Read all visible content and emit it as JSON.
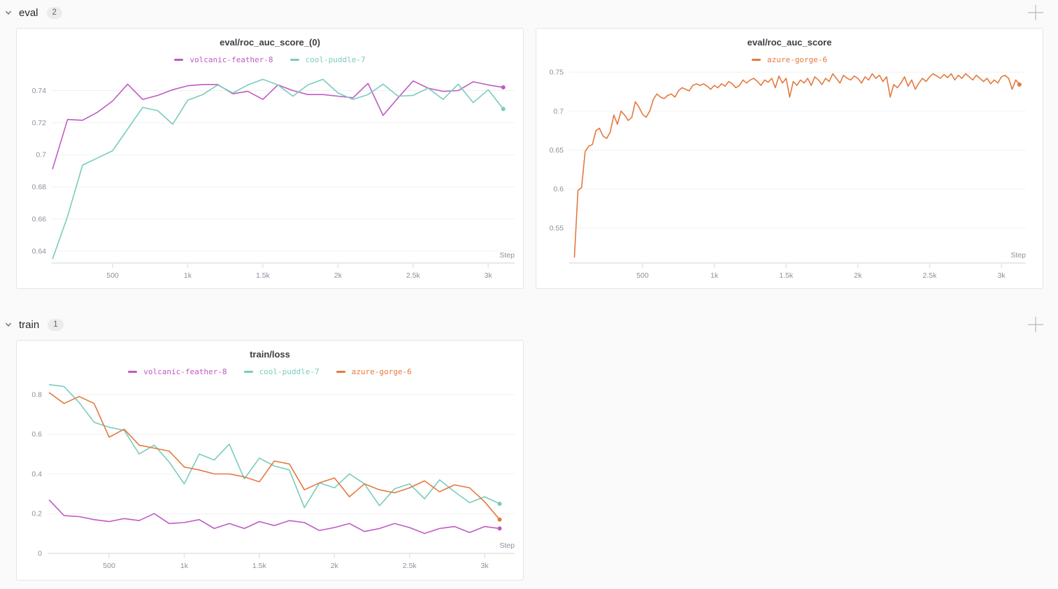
{
  "sections": [
    {
      "label": "eval",
      "count": "2"
    },
    {
      "label": "train",
      "count": "1"
    }
  ],
  "icons": {
    "chevron": "chevron-down",
    "add_panel": "plus"
  },
  "colors": {
    "volcanic_feather_8": "#c05ac4",
    "cool_puddle_7": "#7accbd",
    "azure_gorge_6": "#e4793e",
    "panel_bg": "#ffffff",
    "page_bg": "#fafafa"
  },
  "chart_data": [
    {
      "type": "line",
      "title": "eval/roc_auc_score_(0)",
      "xlabel": "Step",
      "legend_position": "top-center",
      "grid": true,
      "xlim": [
        95,
        3176
      ],
      "ylim": [
        0.6325,
        0.7498
      ],
      "xticks": [
        [
          500,
          "500"
        ],
        [
          1000,
          "1k"
        ],
        [
          1500,
          "1.5k"
        ],
        [
          2000,
          "2k"
        ],
        [
          2500,
          "2.5k"
        ],
        [
          3000,
          "3k"
        ]
      ],
      "yticks": [
        [
          0.64,
          "0.64"
        ],
        [
          0.66,
          "0.66"
        ],
        [
          0.68,
          "0.68"
        ],
        [
          0.7,
          "0.7"
        ],
        [
          0.72,
          "0.72"
        ],
        [
          0.74,
          "0.74"
        ]
      ],
      "x": [
        100,
        200,
        300,
        400,
        500,
        600,
        700,
        800,
        900,
        1000,
        1100,
        1200,
        1300,
        1400,
        1500,
        1600,
        1700,
        1800,
        1900,
        2000,
        2100,
        2200,
        2300,
        2400,
        2500,
        2600,
        2700,
        2800,
        2900,
        3000,
        3100
      ],
      "series": [
        {
          "name": "volcanic-feather-8",
          "color": "#c05ac4",
          "values": [
            0.691,
            0.722,
            0.7215,
            0.7265,
            0.7335,
            0.744,
            0.7345,
            0.737,
            0.7405,
            0.743,
            0.7438,
            0.7438,
            0.738,
            0.7395,
            0.7345,
            0.7435,
            0.74,
            0.7375,
            0.7375,
            0.7365,
            0.7355,
            0.7445,
            0.7245,
            0.7355,
            0.746,
            0.7415,
            0.7395,
            0.74,
            0.7455,
            0.7435,
            0.742
          ]
        },
        {
          "name": "cool-puddle-7",
          "color": "#7accbd",
          "values": [
            0.635,
            0.6615,
            0.6935,
            0.698,
            0.7025,
            0.716,
            0.7295,
            0.7275,
            0.719,
            0.734,
            0.7375,
            0.7435,
            0.7385,
            0.7435,
            0.747,
            0.7435,
            0.7365,
            0.7435,
            0.747,
            0.7385,
            0.7345,
            0.7375,
            0.744,
            0.7365,
            0.737,
            0.7415,
            0.7345,
            0.744,
            0.7325,
            0.7405,
            0.7285
          ]
        }
      ]
    },
    {
      "type": "line",
      "title": "eval/roc_auc_score",
      "xlabel": "Step",
      "legend_position": "top-center",
      "grid": true,
      "xlim": [
        -11,
        3170
      ],
      "ylim": [
        0.505,
        0.7555
      ],
      "xticks": [
        [
          500,
          "500"
        ],
        [
          1000,
          "1k"
        ],
        [
          1500,
          "1.5k"
        ],
        [
          2000,
          "2k"
        ],
        [
          2500,
          "2.5k"
        ],
        [
          3000,
          "3k"
        ]
      ],
      "yticks": [
        [
          0.55,
          "0.55"
        ],
        [
          0.6,
          "0.6"
        ],
        [
          0.65,
          "0.65"
        ],
        [
          0.7,
          "0.7"
        ],
        [
          0.75,
          "0.75"
        ]
      ],
      "x": [
        25,
        50,
        75,
        100,
        125,
        150,
        175,
        200,
        225,
        250,
        275,
        300,
        325,
        350,
        375,
        400,
        425,
        450,
        475,
        500,
        525,
        550,
        575,
        600,
        625,
        650,
        675,
        700,
        725,
        750,
        775,
        800,
        825,
        850,
        875,
        900,
        925,
        950,
        975,
        1000,
        1025,
        1050,
        1075,
        1100,
        1125,
        1150,
        1175,
        1200,
        1225,
        1250,
        1275,
        1300,
        1325,
        1350,
        1375,
        1400,
        1425,
        1450,
        1475,
        1500,
        1525,
        1550,
        1575,
        1600,
        1625,
        1650,
        1675,
        1700,
        1725,
        1750,
        1775,
        1800,
        1825,
        1850,
        1875,
        1900,
        1925,
        1950,
        1975,
        2000,
        2025,
        2050,
        2075,
        2100,
        2125,
        2150,
        2175,
        2200,
        2225,
        2250,
        2275,
        2300,
        2325,
        2350,
        2375,
        2400,
        2425,
        2450,
        2475,
        2500,
        2525,
        2550,
        2575,
        2600,
        2625,
        2650,
        2675,
        2700,
        2725,
        2750,
        2775,
        2800,
        2825,
        2850,
        2875,
        2900,
        2925,
        2950,
        2975,
        3000,
        3025,
        3050,
        3075,
        3100,
        3125
      ],
      "series": [
        {
          "name": "azure-gorge-6",
          "color": "#e4793e",
          "values": [
            0.512,
            0.598,
            0.602,
            0.648,
            0.655,
            0.657,
            0.675,
            0.678,
            0.668,
            0.665,
            0.673,
            0.695,
            0.683,
            0.7,
            0.695,
            0.688,
            0.692,
            0.712,
            0.705,
            0.696,
            0.692,
            0.7,
            0.715,
            0.722,
            0.718,
            0.716,
            0.72,
            0.722,
            0.718,
            0.726,
            0.73,
            0.728,
            0.726,
            0.733,
            0.735,
            0.733,
            0.735,
            0.732,
            0.728,
            0.733,
            0.73,
            0.735,
            0.732,
            0.738,
            0.735,
            0.73,
            0.733,
            0.74,
            0.736,
            0.74,
            0.742,
            0.738,
            0.733,
            0.74,
            0.737,
            0.742,
            0.73,
            0.745,
            0.736,
            0.742,
            0.718,
            0.738,
            0.733,
            0.74,
            0.736,
            0.742,
            0.733,
            0.744,
            0.74,
            0.734,
            0.742,
            0.738,
            0.748,
            0.742,
            0.736,
            0.746,
            0.742,
            0.74,
            0.745,
            0.742,
            0.736,
            0.744,
            0.74,
            0.748,
            0.742,
            0.746,
            0.738,
            0.744,
            0.718,
            0.734,
            0.73,
            0.736,
            0.744,
            0.732,
            0.74,
            0.728,
            0.736,
            0.742,
            0.738,
            0.744,
            0.748,
            0.745,
            0.742,
            0.747,
            0.743,
            0.748,
            0.74,
            0.746,
            0.742,
            0.748,
            0.744,
            0.74,
            0.746,
            0.742,
            0.738,
            0.742,
            0.735,
            0.74,
            0.736,
            0.744,
            0.746,
            0.742,
            0.728,
            0.74,
            0.734
          ]
        }
      ]
    },
    {
      "type": "line",
      "title": "train/loss",
      "xlabel": "Step",
      "legend_position": "top-center",
      "grid": true,
      "xlim": [
        90,
        3200
      ],
      "ylim": [
        0,
        0.881
      ],
      "xticks": [
        [
          500,
          "500"
        ],
        [
          1000,
          "1k"
        ],
        [
          1500,
          "1.5k"
        ],
        [
          2000,
          "2k"
        ],
        [
          2500,
          "2.5k"
        ],
        [
          3000,
          "3k"
        ]
      ],
      "yticks": [
        [
          0,
          "0"
        ],
        [
          0.2,
          "0.2"
        ],
        [
          0.4,
          "0.4"
        ],
        [
          0.6,
          "0.6"
        ],
        [
          0.8,
          "0.8"
        ]
      ],
      "x": [
        100,
        200,
        300,
        400,
        500,
        600,
        700,
        800,
        900,
        1000,
        1100,
        1200,
        1300,
        1400,
        1500,
        1600,
        1700,
        1800,
        1900,
        2000,
        2100,
        2200,
        2300,
        2400,
        2500,
        2600,
        2700,
        2800,
        2900,
        3000,
        3100
      ],
      "series": [
        {
          "name": "volcanic-feather-8",
          "color": "#c05ac4",
          "values": [
            0.27,
            0.19,
            0.185,
            0.17,
            0.16,
            0.175,
            0.165,
            0.2,
            0.15,
            0.155,
            0.17,
            0.125,
            0.15,
            0.125,
            0.16,
            0.14,
            0.165,
            0.155,
            0.115,
            0.13,
            0.15,
            0.11,
            0.125,
            0.15,
            0.13,
            0.1,
            0.125,
            0.135,
            0.105,
            0.135,
            0.125
          ]
        },
        {
          "name": "cool-puddle-7",
          "color": "#7accbd",
          "values": [
            0.85,
            0.84,
            0.76,
            0.66,
            0.635,
            0.62,
            0.5,
            0.545,
            0.46,
            0.35,
            0.5,
            0.47,
            0.55,
            0.375,
            0.48,
            0.44,
            0.42,
            0.23,
            0.355,
            0.33,
            0.4,
            0.35,
            0.24,
            0.325,
            0.35,
            0.275,
            0.37,
            0.31,
            0.255,
            0.285,
            0.25
          ]
        },
        {
          "name": "azure-gorge-6",
          "color": "#e4793e",
          "values": [
            0.81,
            0.755,
            0.79,
            0.755,
            0.585,
            0.625,
            0.545,
            0.53,
            0.515,
            0.435,
            0.42,
            0.4,
            0.4,
            0.385,
            0.36,
            0.465,
            0.45,
            0.32,
            0.355,
            0.38,
            0.285,
            0.35,
            0.32,
            0.305,
            0.33,
            0.365,
            0.31,
            0.345,
            0.33,
            0.26,
            0.17
          ]
        }
      ]
    }
  ]
}
